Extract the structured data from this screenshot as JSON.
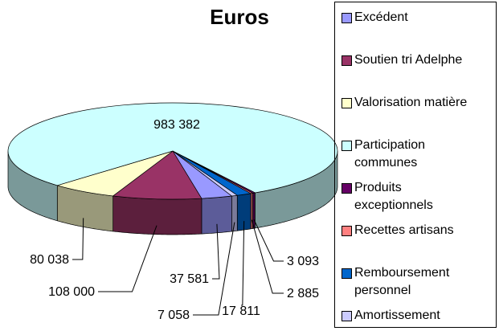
{
  "chart_data": {
    "type": "pie3d",
    "title": "Euros",
    "categories": [
      "Excédent",
      "Soutien tri Adelphe",
      "Valorisation matière",
      "Participation communes",
      "Produits exceptionnels",
      "Recettes artisans",
      "Remboursement personnel",
      "Amortissement"
    ],
    "values": [
      37581,
      108000,
      80038,
      983382,
      3093,
      2885,
      17811,
      7058
    ],
    "value_labels": [
      "37 581",
      "108 000",
      "80 038",
      "983 382",
      "3 093",
      "2 885",
      "17 811",
      "7 058"
    ],
    "colors": [
      "#9999ff",
      "#993366",
      "#ffffcc",
      "#ccffff",
      "#660066",
      "#ff8080",
      "#0066cc",
      "#ccccff"
    ],
    "legend": "right"
  }
}
